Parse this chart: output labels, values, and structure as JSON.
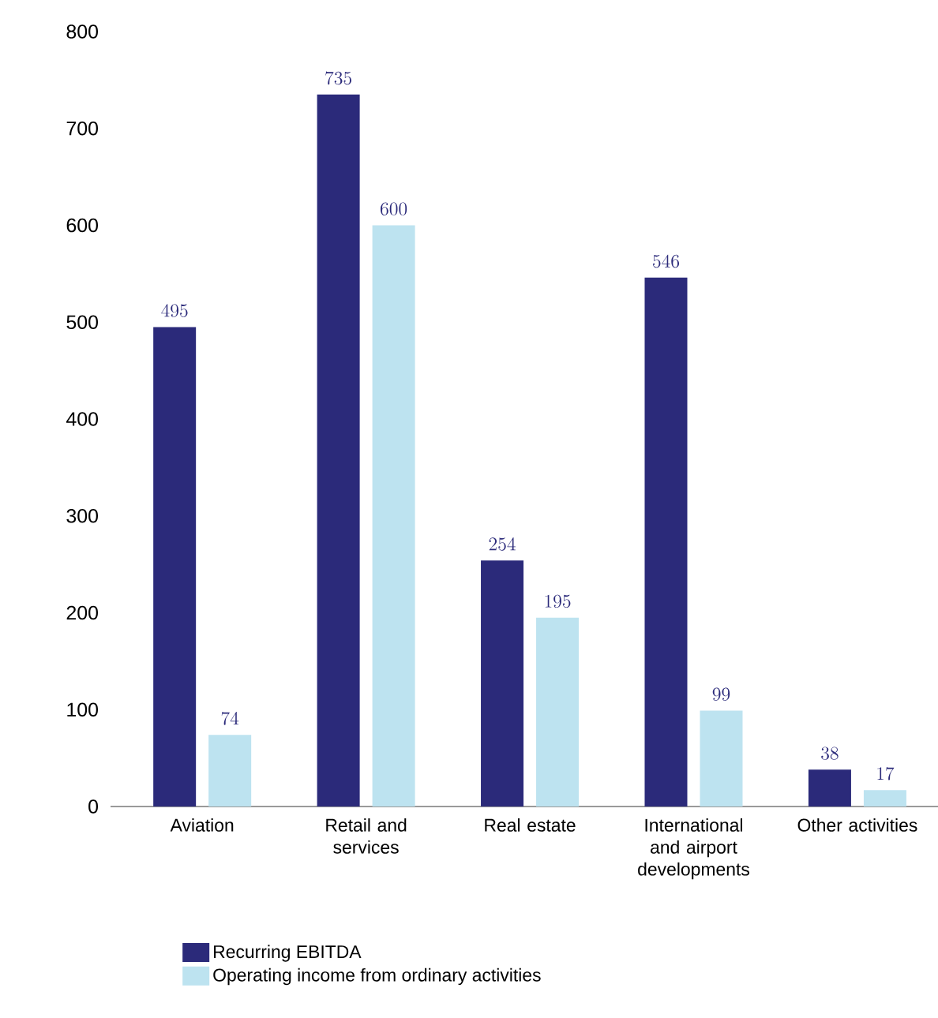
{
  "chart_data": {
    "type": "bar",
    "categories": [
      "Aviation",
      "Retail and services",
      "Real estate",
      "International and airport developments",
      "Other activities"
    ],
    "series": [
      {
        "name": "Recurring EBITDA",
        "color": "#2b2a7a",
        "values": [
          495,
          735,
          254,
          546,
          38
        ]
      },
      {
        "name": "Operating income from ordinary activities",
        "color": "#bde3f0",
        "values": [
          74,
          600,
          195,
          99,
          17
        ]
      }
    ],
    "ylim": [
      0,
      800
    ],
    "yticks": [
      0,
      100,
      200,
      300,
      400,
      500,
      600,
      700,
      800
    ],
    "data_labels": true,
    "legend": "bottom",
    "grid": false
  }
}
